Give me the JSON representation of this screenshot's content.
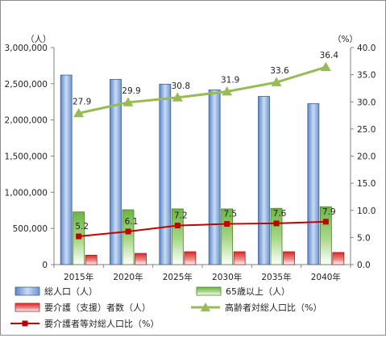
{
  "chart_data": {
    "type": "bar",
    "title": "",
    "categories": [
      "2015年",
      "2020年",
      "2025年",
      "2030年",
      "2035年",
      "2040年"
    ],
    "left_axis": {
      "unit_label": "（人）",
      "range": [
        0,
        3000000
      ],
      "ticks": [
        "0",
        "500,000",
        "1,000,000",
        "1,500,000",
        "2,000,000",
        "2,500,000",
        "3,000,000"
      ]
    },
    "right_axis": {
      "unit_label": "（%）",
      "range": [
        0,
        40
      ],
      "ticks": [
        "0.0",
        "5.0",
        "10.0",
        "15.0",
        "20.0",
        "25.0",
        "30.0",
        "35.0",
        "40.0"
      ]
    },
    "series": [
      {
        "name": "総人口（人）",
        "kind": "bar",
        "axis": "left",
        "color": "#7ea6dc",
        "values": [
          2620000,
          2560000,
          2495000,
          2415000,
          2325000,
          2225000
        ]
      },
      {
        "name": "65歳以上（人）",
        "kind": "bar",
        "axis": "left",
        "color": "#7fc05a",
        "values": [
          728000,
          758000,
          770000,
          770000,
          778000,
          800000
        ]
      },
      {
        "name": "要介護（支援）者数（人）",
        "kind": "bar",
        "axis": "left",
        "color": "#e0302f",
        "values": [
          130000,
          155000,
          178000,
          178000,
          178000,
          168000
        ]
      },
      {
        "name": "高齢者対総人口比（%）",
        "kind": "line",
        "axis": "right",
        "color": "#98bb55",
        "values": [
          27.9,
          29.9,
          30.8,
          31.9,
          33.6,
          36.4
        ],
        "labels": [
          "27.9",
          "29.9",
          "30.8",
          "31.9",
          "33.6",
          "36.4"
        ]
      },
      {
        "name": "要介護者等対総人口比（%）",
        "kind": "line",
        "axis": "right",
        "color": "#c00000",
        "values": [
          5.2,
          6.1,
          7.2,
          7.5,
          7.6,
          7.9
        ],
        "labels": [
          "5.2",
          "6.1",
          "7.2",
          "7.5",
          "7.6",
          "7.9"
        ]
      }
    ],
    "grid": false,
    "legend_position": "bottom"
  }
}
